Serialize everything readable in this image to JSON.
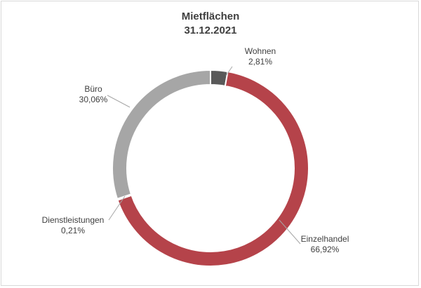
{
  "chart_data": {
    "type": "pie",
    "variant": "donut",
    "title": "Mietflächen",
    "subtitle": "31.12.2021",
    "legend": "none",
    "slices": [
      {
        "name": "Wohnen",
        "value": 2.81,
        "label": "2,81%",
        "color": "#595959"
      },
      {
        "name": "Einzelhandel",
        "value": 66.92,
        "label": "66,92%",
        "color": "#b5434a"
      },
      {
        "name": "Dienstleistungen",
        "value": 0.21,
        "label": "0,21%",
        "color": "#d9d9d9"
      },
      {
        "name": "Büro",
        "value": 30.06,
        "label": "30,06%",
        "color": "#a6a6a6"
      }
    ]
  }
}
